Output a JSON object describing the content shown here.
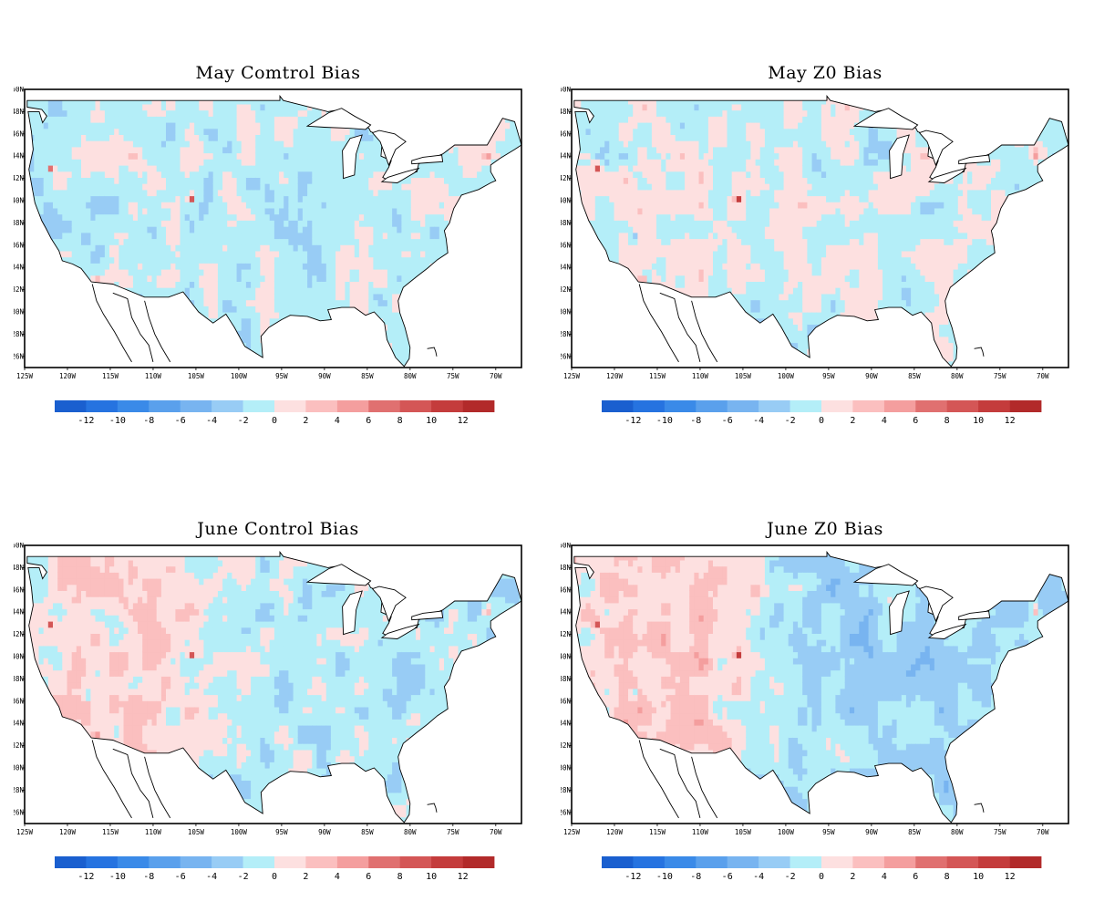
{
  "panels": [
    {
      "id": "may-control",
      "title": "May Comtrol Bias",
      "west_bias": -0.6,
      "east_bias": -0.6,
      "variant": 0
    },
    {
      "id": "may-z0",
      "title": "May Z0 Bias",
      "west_bias": 0.4,
      "east_bias": -0.3,
      "variant": 1
    },
    {
      "id": "june-control",
      "title": "June Control Bias",
      "west_bias": 1.6,
      "east_bias": -1.2,
      "variant": 2
    },
    {
      "id": "june-z0",
      "title": "June Z0 Bias",
      "west_bias": 2.2,
      "east_bias": -2.2,
      "variant": 3
    }
  ],
  "map": {
    "lon_ticks": [
      "125W",
      "120W",
      "115W",
      "110W",
      "105W",
      "100W",
      "95W",
      "90W",
      "85W",
      "80W",
      "75W",
      "70W"
    ],
    "lat_ticks": [
      "50N",
      "48N",
      "46N",
      "44N",
      "42N",
      "40N",
      "38N",
      "36N",
      "34N",
      "32N",
      "30N",
      "28N",
      "26N"
    ]
  },
  "colorbar": {
    "labels": [
      "-12",
      "-10",
      "-8",
      "-6",
      "-4",
      "-2",
      "0",
      "2",
      "4",
      "6",
      "8",
      "10",
      "12"
    ],
    "colors": [
      "#1a5fcf",
      "#2673e0",
      "#3a8ae8",
      "#5aa0ec",
      "#78b4f0",
      "#98ccf5",
      "#b4eef8",
      "#fde0e0",
      "#fbbfbf",
      "#f49e9e",
      "#e07070",
      "#d45656",
      "#c43c3c",
      "#b22a2a"
    ]
  }
}
